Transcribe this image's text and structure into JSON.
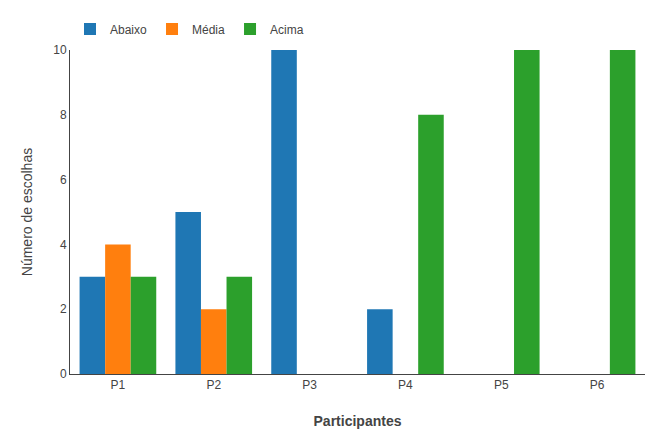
{
  "chart_data": {
    "type": "bar",
    "xlabel": "Participantes",
    "ylabel": "Número de escolhas",
    "categories": [
      "P1",
      "P2",
      "P3",
      "P4",
      "P5",
      "P6"
    ],
    "series": [
      {
        "name": "Abaixo",
        "values": [
          3,
          5,
          10,
          2,
          0,
          0
        ]
      },
      {
        "name": "Média",
        "values": [
          4,
          2,
          0,
          0,
          0,
          0
        ]
      },
      {
        "name": "Acima",
        "values": [
          3,
          3,
          0,
          8,
          10,
          10
        ]
      }
    ],
    "ylim": [
      0,
      10
    ],
    "yticks": [
      0,
      2,
      4,
      6,
      8,
      10
    ],
    "grid": false,
    "legend": "upper left"
  }
}
